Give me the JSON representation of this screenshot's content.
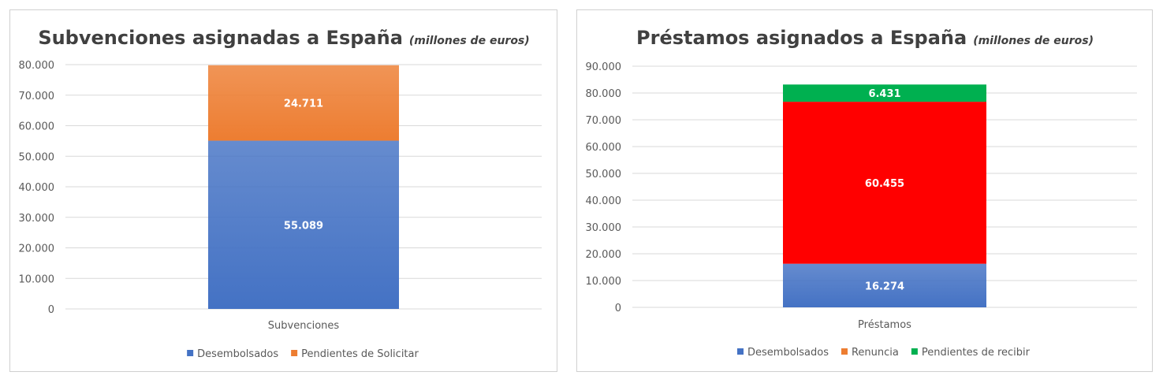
{
  "colors": {
    "desembolsados": "#4472c4",
    "pendientes_solicitar": "#ed7d31",
    "renuncia_legend": "#ed7d31",
    "renuncia_bar": "#ff0000",
    "pendientes_recibir": "#00b050"
  },
  "chart_data": [
    {
      "type": "bar",
      "stacked": true,
      "title": "Subvenciones asignadas a España",
      "subtitle": "(millones de euros)",
      "categories": [
        "Subvenciones"
      ],
      "ylim": [
        0,
        80000
      ],
      "yticks": [
        0,
        10000,
        20000,
        30000,
        40000,
        50000,
        60000,
        70000,
        80000
      ],
      "ytick_labels": [
        "0",
        "10.000",
        "20.000",
        "30.000",
        "40.000",
        "50.000",
        "60.000",
        "70.000",
        "80.000"
      ],
      "grid": true,
      "legend_position": "bottom",
      "series": [
        {
          "name": "Desembolsados",
          "values": [
            55089
          ],
          "label": "55.089",
          "color": "#4472c4"
        },
        {
          "name": "Pendientes de Solicitar",
          "values": [
            24711
          ],
          "label": "24.711",
          "color": "#ed7d31"
        }
      ]
    },
    {
      "type": "bar",
      "stacked": true,
      "title": "Préstamos asignados a España",
      "subtitle": "(millones de euros)",
      "categories": [
        "Préstamos"
      ],
      "ylim": [
        0,
        90000
      ],
      "yticks": [
        0,
        10000,
        20000,
        30000,
        40000,
        50000,
        60000,
        70000,
        80000,
        90000
      ],
      "ytick_labels": [
        "0",
        "10.000",
        "20.000",
        "30.000",
        "40.000",
        "50.000",
        "60.000",
        "70.000",
        "80.000",
        "90.000"
      ],
      "grid": true,
      "legend_position": "bottom",
      "series": [
        {
          "name": "Desembolsados",
          "values": [
            16274
          ],
          "label": "16.274",
          "color": "#4472c4"
        },
        {
          "name": "Renuncia",
          "values": [
            60455
          ],
          "label": "60.455",
          "color": "#ff0000",
          "legend_color": "#ed7d31"
        },
        {
          "name": "Pendientes de recibir",
          "values": [
            6431
          ],
          "label": "6.431",
          "color": "#00b050"
        }
      ]
    }
  ]
}
